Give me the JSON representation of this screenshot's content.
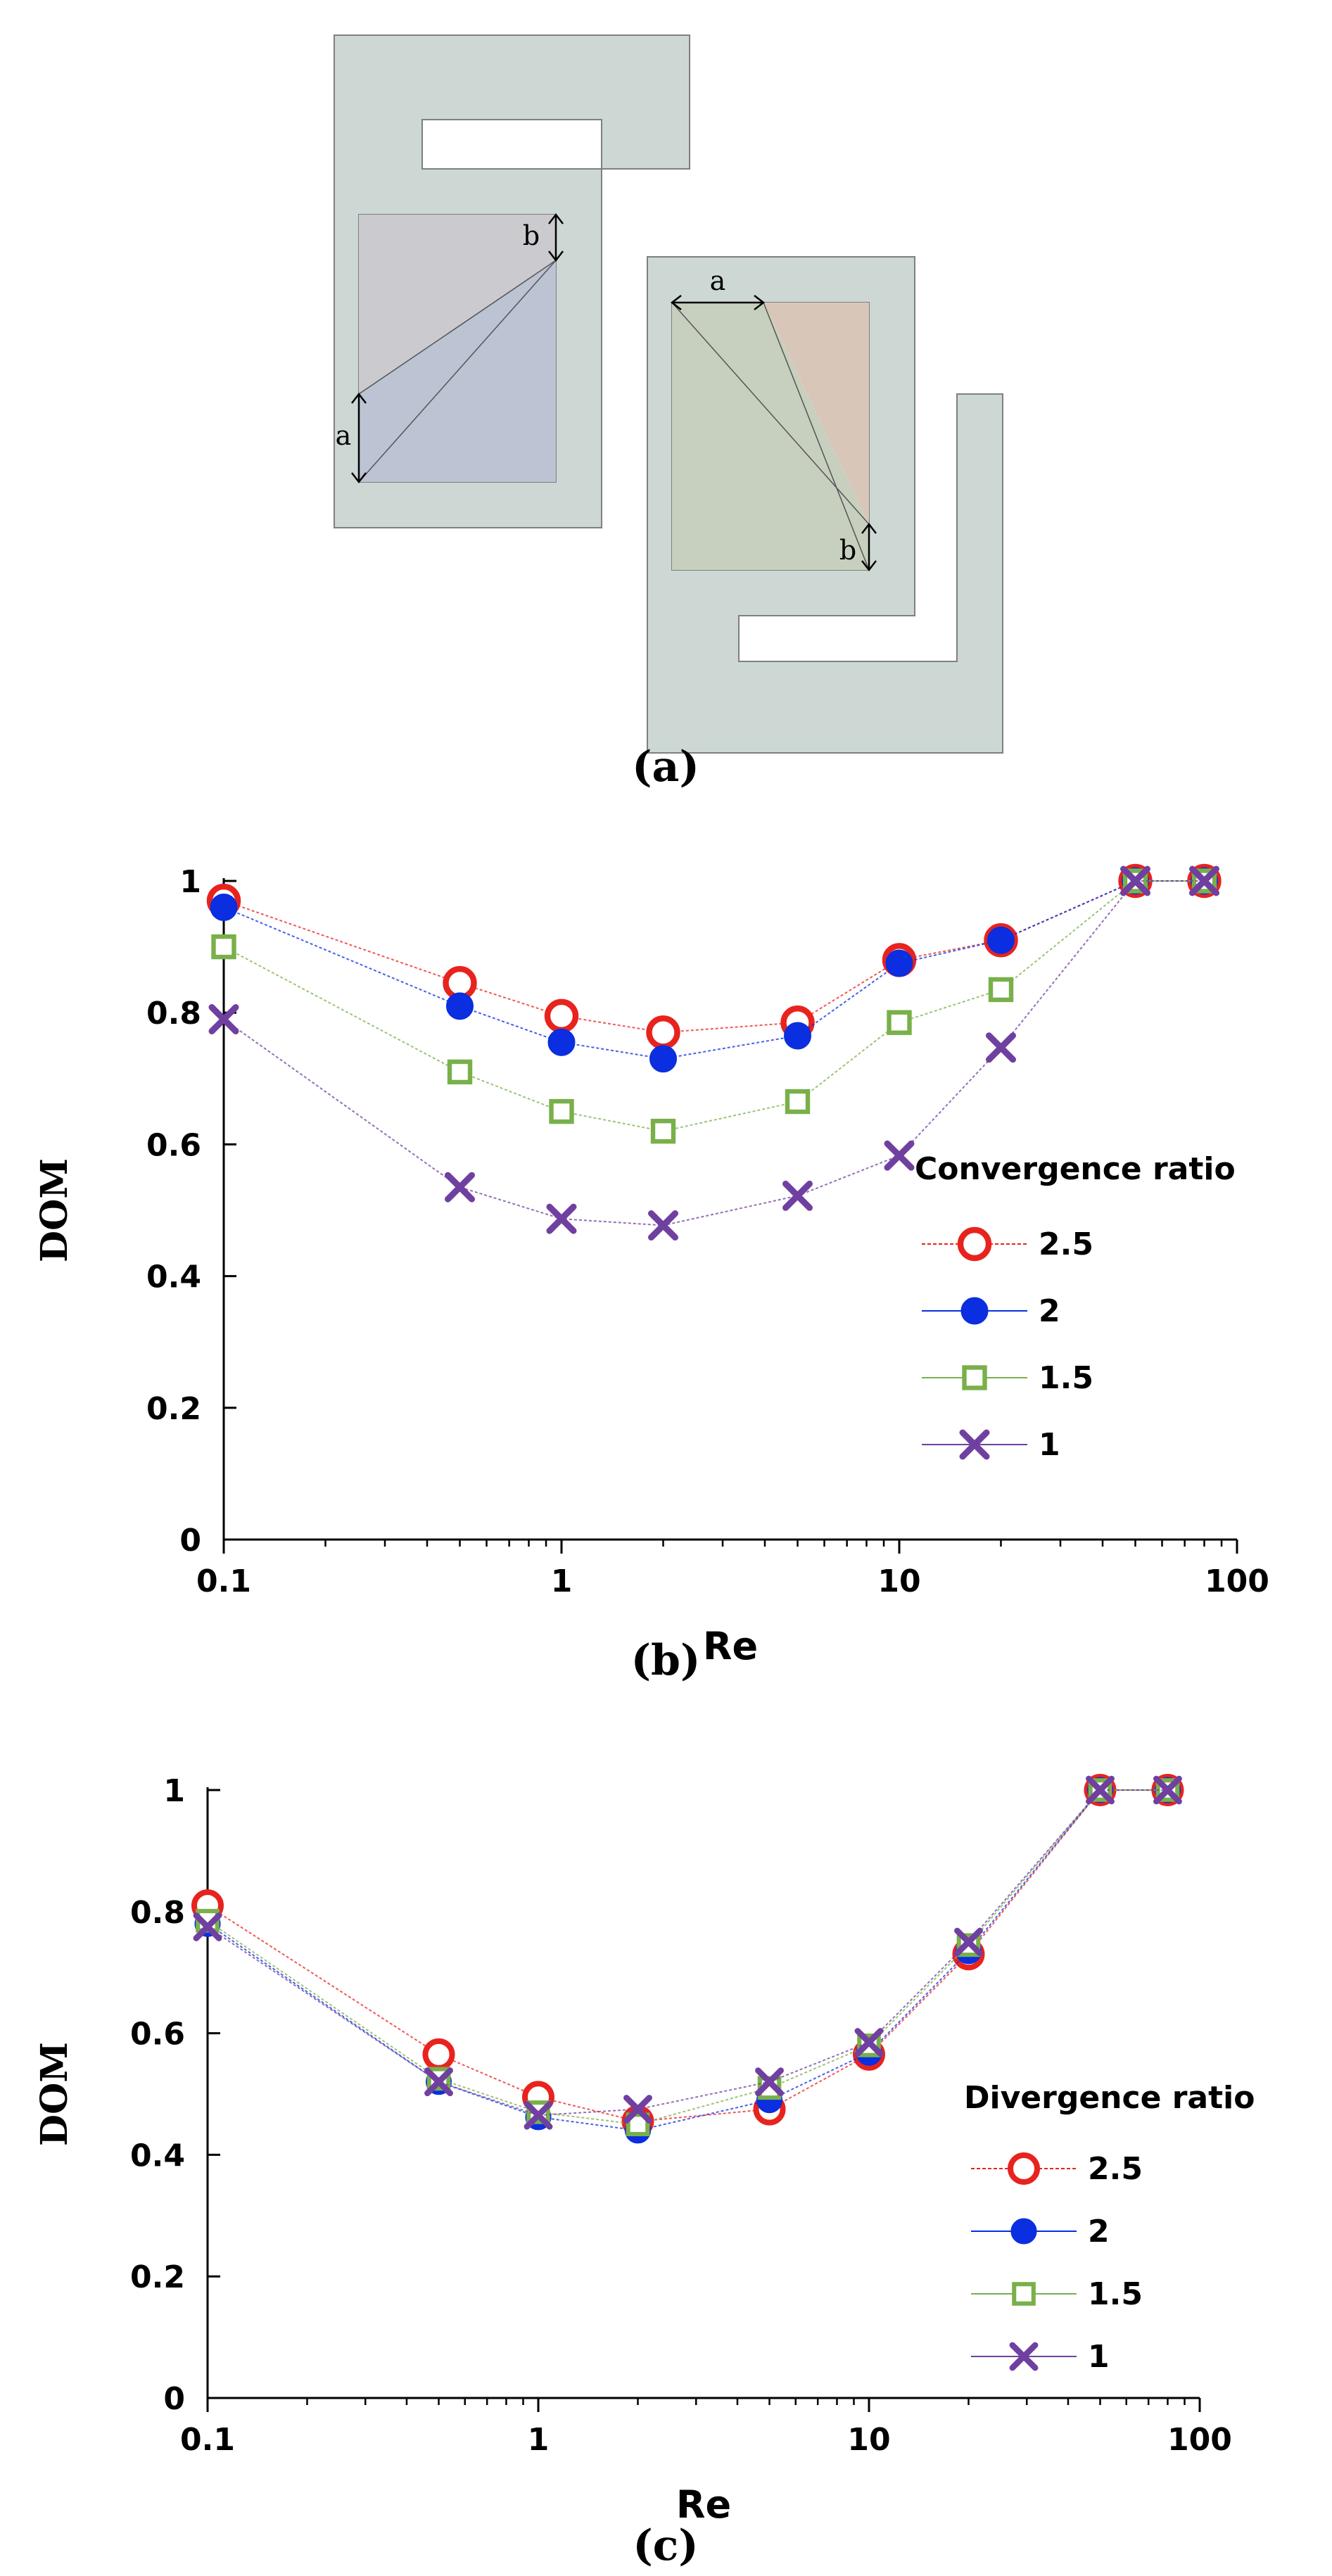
{
  "panel_a": {
    "caption": "(a)",
    "labels": {
      "a_left": "a",
      "b_left": "b",
      "a_right": "a",
      "b_right": "b"
    },
    "colors": {
      "frame": "#cdd8d4",
      "frame_stroke": "#7f7f7f",
      "left_upper_triangle": "#cbcbcf",
      "left_lower_triangle": "#bcc3d3",
      "right_left_triangle": "#c7d0bf",
      "right_right_triangle": "#d8c7b8"
    }
  },
  "chart_data": [
    {
      "type": "line",
      "caption": "(b)",
      "xlabel": "Re",
      "ylabel": "DOM",
      "xscale": "log",
      "xlim": [
        0.1,
        100
      ],
      "ylim": [
        0,
        1
      ],
      "x_ticks": [
        0.1,
        1,
        10,
        100
      ],
      "x_tick_labels": [
        "0.1",
        "1",
        "10",
        "100"
      ],
      "y_ticks": [
        0,
        0.2,
        0.4,
        0.6,
        0.8,
        1
      ],
      "y_tick_labels": [
        "0",
        "0.2",
        "0.4",
        "0.6",
        "0.8",
        "1"
      ],
      "legend_title": "Convergence ratio",
      "legend_position": "right",
      "x": [
        0.1,
        0.5,
        1,
        2,
        5,
        10,
        20,
        50,
        80
      ],
      "series": [
        {
          "name": "2.5",
          "marker": "circle-open",
          "color": "#e8231e",
          "values": [
            0.97,
            0.845,
            0.795,
            0.77,
            0.785,
            0.88,
            0.91,
            1.0,
            1.0
          ]
        },
        {
          "name": "2",
          "marker": "circle-filled",
          "color": "#0a2ee0",
          "values": [
            0.96,
            0.81,
            0.755,
            0.73,
            0.765,
            0.875,
            0.91,
            1.0,
            1.0
          ]
        },
        {
          "name": "1.5",
          "marker": "square-open",
          "color": "#79b04a",
          "values": [
            0.9,
            0.71,
            0.65,
            0.62,
            0.665,
            0.785,
            0.835,
            1.0,
            1.0
          ]
        },
        {
          "name": "1",
          "marker": "x",
          "color": "#7040a0",
          "values": [
            0.79,
            0.535,
            0.487,
            0.477,
            0.522,
            0.583,
            0.747,
            1.0,
            1.0
          ]
        }
      ]
    },
    {
      "type": "line",
      "caption": "(c)",
      "xlabel": "Re",
      "ylabel": "DOM",
      "xscale": "log",
      "xlim": [
        0.1,
        100
      ],
      "ylim": [
        0,
        1
      ],
      "x_ticks": [
        0.1,
        1,
        10,
        100
      ],
      "x_tick_labels": [
        "0.1",
        "1",
        "10",
        "100"
      ],
      "y_ticks": [
        0,
        0.2,
        0.4,
        0.6,
        0.8,
        1
      ],
      "y_tick_labels": [
        "0",
        "0.2",
        "0.4",
        "0.6",
        "0.8",
        "1"
      ],
      "legend_title": "Divergence ratio",
      "legend_position": "right",
      "x": [
        0.1,
        0.5,
        1,
        2,
        5,
        10,
        20,
        50,
        80
      ],
      "series": [
        {
          "name": "2.5",
          "marker": "circle-open",
          "color": "#e8231e",
          "values": [
            0.81,
            0.565,
            0.495,
            0.455,
            0.475,
            0.565,
            0.73,
            1.0,
            1.0
          ]
        },
        {
          "name": "2",
          "marker": "circle-filled",
          "color": "#0a2ee0",
          "values": [
            0.78,
            0.52,
            0.462,
            0.44,
            0.49,
            0.568,
            0.735,
            1.0,
            1.0
          ]
        },
        {
          "name": "1.5",
          "marker": "square-open",
          "color": "#79b04a",
          "values": [
            0.785,
            0.525,
            0.47,
            0.45,
            0.51,
            0.58,
            0.745,
            1.0,
            1.0
          ]
        },
        {
          "name": "1",
          "marker": "x",
          "color": "#7040a0",
          "values": [
            0.775,
            0.52,
            0.465,
            0.475,
            0.52,
            0.585,
            0.75,
            1.0,
            1.0
          ]
        }
      ]
    }
  ]
}
